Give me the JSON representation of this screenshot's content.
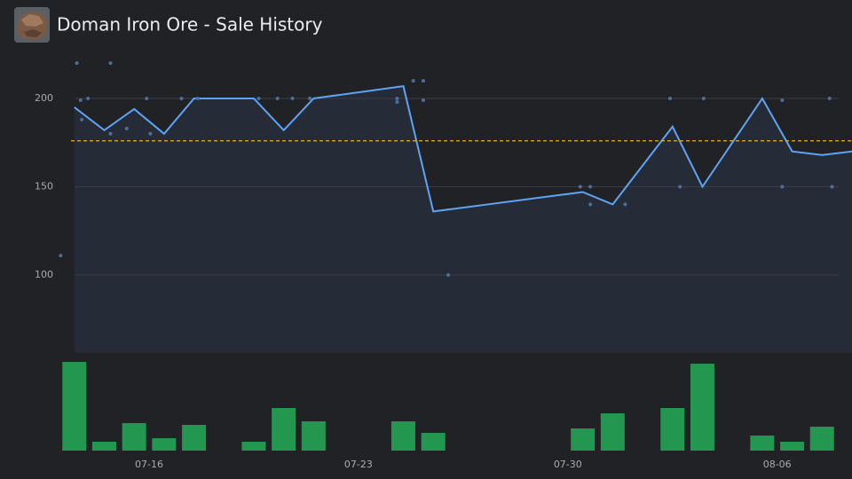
{
  "header": {
    "title": "Doman Iron Ore - Sale History"
  },
  "chart_data": [
    {
      "type": "line",
      "x": [
        "07-13",
        "07-14",
        "07-15",
        "07-16",
        "07-17",
        "07-19",
        "07-20",
        "07-21",
        "07-24",
        "07-25",
        "07-30",
        "07-31",
        "08-02",
        "08-03",
        "08-05",
        "08-06",
        "08-07",
        "08-08"
      ],
      "values": [
        195,
        182,
        194,
        180,
        200,
        200,
        182,
        200,
        207,
        136,
        147,
        140,
        184,
        150,
        200,
        170,
        168,
        170
      ],
      "color": "#5fa3f5",
      "area_color": "#262c37",
      "ylim": [
        56,
        222
      ],
      "yticks": [
        100,
        150,
        200
      ],
      "grid": true,
      "average": 176,
      "average_color": "#e8b21e"
    },
    {
      "type": "scatter",
      "x": [
        "07-13 01:00",
        "07-13 14:00",
        "07-13 17:00",
        "07-13 18:00",
        "07-13 23:00",
        "07-14 17:00",
        "07-14 17:00",
        "07-15 06:00",
        "07-15 22:00",
        "07-16 01:00",
        "07-17 02:00",
        "07-17 15:00",
        "07-19 16:00",
        "07-20 07:00",
        "07-20 19:00",
        "07-21 09:00",
        "07-24 07:00",
        "07-24 07:00",
        "07-24 20:00",
        "07-25 04:00",
        "07-25 04:00",
        "07-26 00:00",
        "07-30 10:00",
        "07-30 18:00",
        "07-30 18:00",
        "07-31 22:00",
        "08-02 10:00",
        "08-02 18:00",
        "08-03 13:00",
        "08-06 04:00",
        "08-06 04:00",
        "08-07 18:00",
        "08-07 20:00"
      ],
      "values": [
        111,
        220,
        199,
        188,
        200,
        220,
        180,
        183,
        200,
        180,
        200,
        200,
        200,
        200,
        200,
        200,
        200,
        198,
        210,
        210,
        199,
        100,
        150,
        150,
        140,
        140,
        200,
        150,
        200,
        199,
        150,
        200,
        150
      ],
      "color": "#4d6d9e"
    },
    {
      "type": "bar",
      "x": [
        "07-13",
        "07-14",
        "07-15",
        "07-16",
        "07-17",
        "07-19",
        "07-20",
        "07-21",
        "07-24",
        "07-25",
        "07-30",
        "07-31",
        "08-02",
        "08-03",
        "08-05",
        "08-06",
        "08-07"
      ],
      "values": [
        100,
        10,
        31,
        14,
        29,
        10,
        48,
        33,
        33,
        20,
        25,
        42,
        48,
        98,
        17,
        10,
        27
      ],
      "color": "#23964f",
      "xlim": [
        "07-13",
        "08-08"
      ],
      "xticks": [
        "07-16",
        "07-23",
        "07-30",
        "08-06"
      ]
    }
  ]
}
